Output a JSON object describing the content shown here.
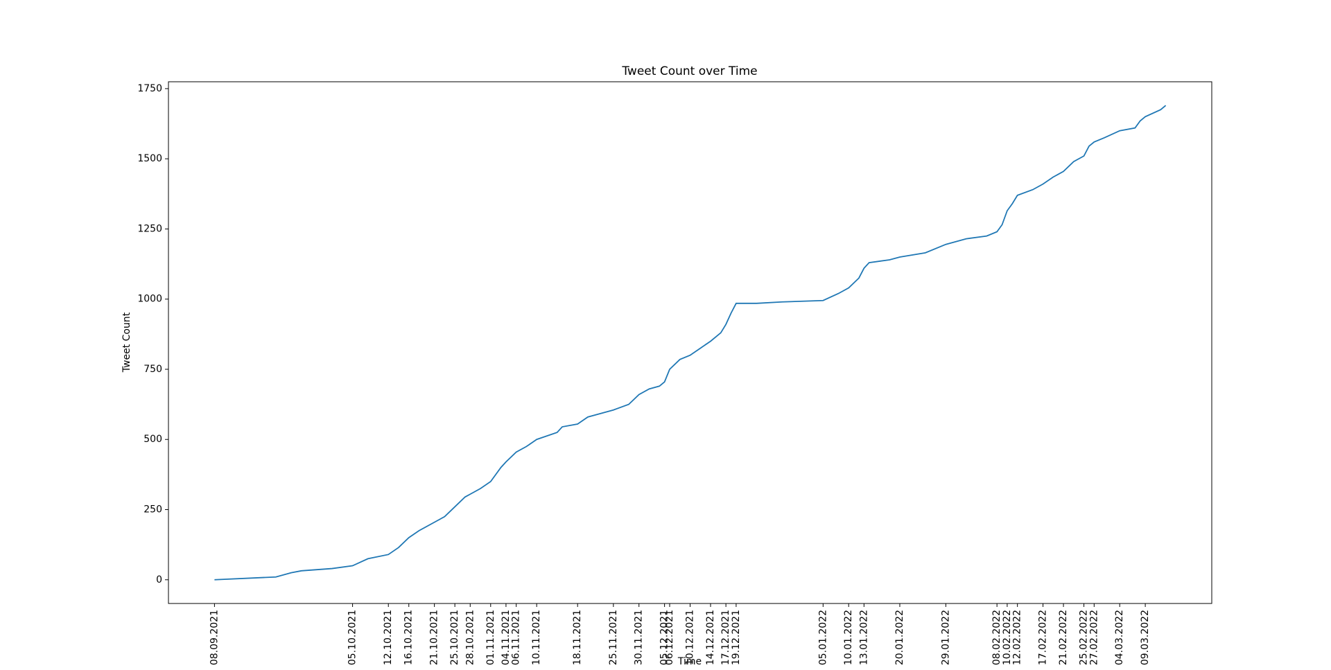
{
  "chart_data": {
    "type": "line",
    "title": "Tweet Count over Time",
    "x_label": "Time",
    "y_label": "Tweet Count",
    "x": [
      "2021-09-08",
      "2021-09-20",
      "2021-09-23",
      "2021-09-25",
      "2021-10-01",
      "2021-10-05",
      "2021-10-08",
      "2021-10-12",
      "2021-10-14",
      "2021-10-16",
      "2021-10-18",
      "2021-10-21",
      "2021-10-23",
      "2021-10-25",
      "2021-10-27",
      "2021-10-28",
      "2021-10-30",
      "2021-11-01",
      "2021-11-03",
      "2021-11-04",
      "2021-11-06",
      "2021-11-08",
      "2021-11-10",
      "2021-11-14",
      "2021-11-15",
      "2021-11-18",
      "2021-11-20",
      "2021-11-25",
      "2021-11-28",
      "2021-11-30",
      "2021-12-02",
      "2021-12-04",
      "2021-12-05",
      "2021-12-06",
      "2021-12-08",
      "2021-12-10",
      "2021-12-12",
      "2021-12-14",
      "2021-12-16",
      "2021-12-17",
      "2021-12-18",
      "2021-12-19",
      "2021-12-23",
      "2021-12-28",
      "2022-01-05",
      "2022-01-08",
      "2022-01-10",
      "2022-01-12",
      "2022-01-13",
      "2022-01-14",
      "2022-01-18",
      "2022-01-20",
      "2022-01-25",
      "2022-01-29",
      "2022-02-02",
      "2022-02-06",
      "2022-02-08",
      "2022-02-09",
      "2022-02-10",
      "2022-02-11",
      "2022-02-12",
      "2022-02-15",
      "2022-02-17",
      "2022-02-19",
      "2022-02-21",
      "2022-02-23",
      "2022-02-25",
      "2022-02-26",
      "2022-02-27",
      "2022-03-01",
      "2022-03-04",
      "2022-03-07",
      "2022-03-08",
      "2022-03-09",
      "2022-03-12",
      "2022-03-13"
    ],
    "series": [
      {
        "name": "Tweet Count",
        "color": "#1f77b4",
        "values": [
          0,
          10,
          25,
          32,
          40,
          50,
          75,
          90,
          115,
          150,
          175,
          205,
          225,
          260,
          295,
          305,
          325,
          350,
          400,
          420,
          455,
          475,
          500,
          525,
          545,
          555,
          580,
          605,
          625,
          660,
          680,
          690,
          705,
          750,
          785,
          800,
          825,
          850,
          880,
          910,
          950,
          985,
          985,
          990,
          995,
          1020,
          1040,
          1075,
          1110,
          1130,
          1140,
          1150,
          1165,
          1195,
          1215,
          1225,
          1240,
          1265,
          1315,
          1340,
          1370,
          1390,
          1410,
          1435,
          1455,
          1490,
          1510,
          1545,
          1560,
          1575,
          1600,
          1610,
          1635,
          1650,
          1675,
          1690
        ]
      }
    ],
    "xlim": [
      "2021-08-30",
      "2022-03-22"
    ],
    "xticks": [
      {
        "value": "2021-09-08",
        "label": "08.09.2021"
      },
      {
        "value": "2021-10-05",
        "label": "05.10.2021"
      },
      {
        "value": "2021-10-12",
        "label": "12.10.2021"
      },
      {
        "value": "2021-10-16",
        "label": "16.10.2021"
      },
      {
        "value": "2021-10-21",
        "label": "21.10.2021"
      },
      {
        "value": "2021-10-25",
        "label": "25.10.2021"
      },
      {
        "value": "2021-10-28",
        "label": "28.10.2021"
      },
      {
        "value": "2021-11-01",
        "label": "01.11.2021"
      },
      {
        "value": "2021-11-04",
        "label": "04.11.2021"
      },
      {
        "value": "2021-11-06",
        "label": "06.11.2021"
      },
      {
        "value": "2021-11-10",
        "label": "10.11.2021"
      },
      {
        "value": "2021-11-18",
        "label": "18.11.2021"
      },
      {
        "value": "2021-11-25",
        "label": "25.11.2021"
      },
      {
        "value": "2021-11-30",
        "label": "30.11.2021"
      },
      {
        "value": "2021-12-05",
        "label": "05.12.2021"
      },
      {
        "value": "2021-12-06",
        "label": "06.12.2021"
      },
      {
        "value": "2021-12-10",
        "label": "10.12.2021"
      },
      {
        "value": "2021-12-14",
        "label": "14.12.2021"
      },
      {
        "value": "2021-12-17",
        "label": "17.12.2021"
      },
      {
        "value": "2021-12-19",
        "label": "19.12.2021"
      },
      {
        "value": "2022-01-05",
        "label": "05.01.2022"
      },
      {
        "value": "2022-01-10",
        "label": "10.01.2022"
      },
      {
        "value": "2022-01-13",
        "label": "13.01.2022"
      },
      {
        "value": "2022-01-20",
        "label": "20.01.2022"
      },
      {
        "value": "2022-01-29",
        "label": "29.01.2022"
      },
      {
        "value": "2022-02-08",
        "label": "08.02.2022"
      },
      {
        "value": "2022-02-10",
        "label": "10.02.2022"
      },
      {
        "value": "2022-02-12",
        "label": "12.02.2022"
      },
      {
        "value": "2022-02-17",
        "label": "17.02.2022"
      },
      {
        "value": "2022-02-21",
        "label": "21.02.2022"
      },
      {
        "value": "2022-02-25",
        "label": "25.02.2022"
      },
      {
        "value": "2022-02-27",
        "label": "27.02.2022"
      },
      {
        "value": "2022-03-04",
        "label": "04.03.2022"
      },
      {
        "value": "2022-03-09",
        "label": "09.03.2022"
      }
    ],
    "ylim": [
      -84.5,
      1774.5
    ],
    "yticks": [
      0,
      250,
      500,
      750,
      1000,
      1250,
      1500,
      1750
    ],
    "grid": false
  }
}
